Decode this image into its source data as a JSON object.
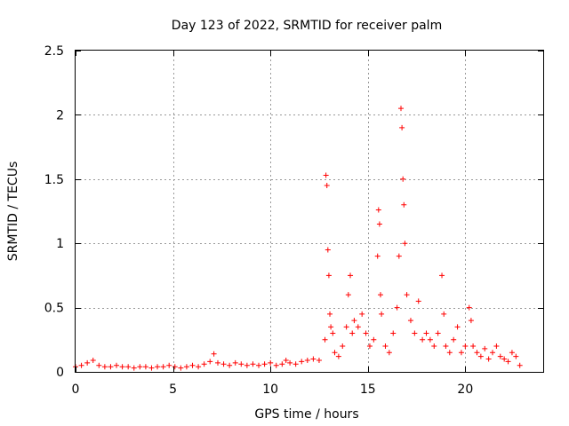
{
  "chart_data": {
    "type": "scatter",
    "title": "Day 123 of 2022, SRMTID for receiver palm",
    "xlabel": "GPS time / hours",
    "ylabel": "SRMTID / TECUs",
    "xlim": [
      0,
      24
    ],
    "ylim": [
      0,
      2.5
    ],
    "xticks": [
      0,
      5,
      10,
      15,
      20
    ],
    "xtick_labels": [
      "0",
      "5",
      "10",
      "15",
      "20"
    ],
    "yticks": [
      0,
      0.5,
      1,
      1.5,
      2,
      2.5
    ],
    "ytick_labels": [
      "0",
      "0.5",
      "1",
      "1.5",
      "2",
      "2.5"
    ],
    "grid": true,
    "marker": "+",
    "color": "#ff0000",
    "series": [
      {
        "name": "SRMTID",
        "x": [
          0.0,
          0.3,
          0.6,
          0.9,
          1.2,
          1.5,
          1.8,
          2.1,
          2.4,
          2.7,
          3.0,
          3.3,
          3.6,
          3.9,
          4.2,
          4.5,
          4.8,
          5.1,
          5.4,
          5.7,
          6.0,
          6.3,
          6.6,
          6.9,
          7.1,
          7.3,
          7.6,
          7.9,
          8.2,
          8.5,
          8.8,
          9.1,
          9.4,
          9.7,
          10.0,
          10.3,
          10.6,
          10.8,
          11.0,
          11.3,
          11.6,
          11.9,
          12.2,
          12.5,
          12.8,
          12.85,
          12.9,
          12.95,
          13.0,
          13.05,
          13.1,
          13.2,
          13.3,
          13.5,
          13.7,
          13.9,
          14.0,
          14.1,
          14.2,
          14.3,
          14.5,
          14.7,
          14.9,
          15.1,
          15.3,
          15.5,
          15.55,
          15.6,
          15.65,
          15.7,
          15.9,
          16.1,
          16.3,
          16.5,
          16.6,
          16.7,
          16.75,
          16.8,
          16.85,
          16.9,
          17.0,
          17.2,
          17.4,
          17.6,
          17.8,
          18.0,
          18.2,
          18.4,
          18.6,
          18.8,
          18.9,
          19.0,
          19.2,
          19.4,
          19.6,
          19.8,
          20.0,
          20.2,
          20.3,
          20.4,
          20.6,
          20.8,
          21.0,
          21.2,
          21.4,
          21.6,
          21.8,
          22.0,
          22.2,
          22.4,
          22.6,
          22.8
        ],
        "y": [
          0.04,
          0.05,
          0.07,
          0.09,
          0.05,
          0.04,
          0.04,
          0.05,
          0.04,
          0.04,
          0.03,
          0.04,
          0.04,
          0.03,
          0.04,
          0.04,
          0.05,
          0.04,
          0.03,
          0.04,
          0.05,
          0.04,
          0.06,
          0.08,
          0.14,
          0.07,
          0.06,
          0.05,
          0.07,
          0.06,
          0.05,
          0.06,
          0.05,
          0.06,
          0.07,
          0.05,
          0.06,
          0.09,
          0.07,
          0.06,
          0.08,
          0.09,
          0.1,
          0.09,
          0.25,
          1.53,
          1.45,
          0.95,
          0.75,
          0.45,
          0.35,
          0.3,
          0.15,
          0.12,
          0.2,
          0.35,
          0.6,
          0.75,
          0.3,
          0.4,
          0.35,
          0.45,
          0.3,
          0.2,
          0.25,
          0.9,
          1.26,
          1.15,
          0.6,
          0.45,
          0.2,
          0.15,
          0.3,
          0.5,
          0.9,
          2.05,
          1.9,
          1.5,
          1.3,
          1.0,
          0.6,
          0.4,
          0.3,
          0.55,
          0.25,
          0.3,
          0.25,
          0.2,
          0.3,
          0.75,
          0.45,
          0.2,
          0.15,
          0.25,
          0.35,
          0.15,
          0.2,
          0.5,
          0.4,
          0.2,
          0.15,
          0.12,
          0.18,
          0.1,
          0.15,
          0.2,
          0.12,
          0.1,
          0.08,
          0.15,
          0.12,
          0.05
        ]
      }
    ]
  }
}
